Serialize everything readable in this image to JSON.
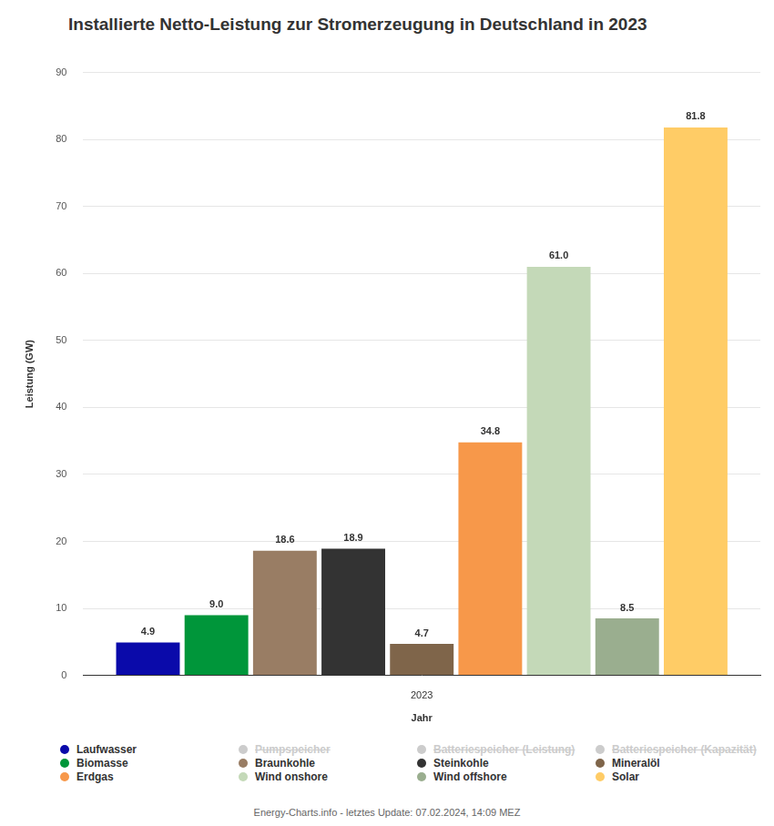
{
  "chart_data": {
    "type": "bar",
    "title": "Installierte Netto-Leistung zur Stromerzeugung in Deutschland in 2023",
    "x_label": "Jahr",
    "y_label": "Leistung (GW)",
    "source": "Energy-Charts.info - letztes Update: 07.02.2024, 14:09 MEZ",
    "categories": [
      "2023"
    ],
    "series": [
      {
        "name": "Laufwasser",
        "color": "#0a0aaa",
        "values": [
          4.9
        ]
      },
      {
        "name": "Pumpspeicher",
        "color": "#cccccc",
        "values": [
          null
        ]
      },
      {
        "name": "Batteriespeicher (Leistung)",
        "color": "#cccccc",
        "values": [
          null
        ]
      },
      {
        "name": "Batteriespeicher (Kapazität)",
        "color": "#cccccc",
        "values": [
          null
        ]
      },
      {
        "name": "Biomasse",
        "color": "#00963a",
        "values": [
          9.0
        ],
        "value_labels": [
          "9.0"
        ]
      },
      {
        "name": "Braunkohle",
        "color": "#997d64",
        "values": [
          18.6
        ]
      },
      {
        "name": "Steinkohle",
        "color": "#333333",
        "values": [
          18.9
        ]
      },
      {
        "name": "Mineralöl",
        "color": "#7f654a",
        "values": [
          4.7
        ]
      },
      {
        "name": "Erdgas",
        "color": "#f7984a",
        "values": [
          34.8
        ]
      },
      {
        "name": "Wind onshore",
        "color": "#c4d9b8",
        "values": [
          61.0
        ],
        "value_labels": [
          "61.0"
        ]
      },
      {
        "name": "Wind offshore",
        "color": "#9aae8f",
        "values": [
          8.5
        ]
      },
      {
        "name": "Solar",
        "color": "#ffcc66",
        "values": [
          81.8
        ]
      }
    ],
    "ylim": [
      0,
      90
    ],
    "yticks": [
      0,
      10,
      20,
      30,
      40,
      50,
      60,
      70,
      80,
      90
    ],
    "grid": true,
    "legend": "bottom",
    "data_labels": true
  }
}
